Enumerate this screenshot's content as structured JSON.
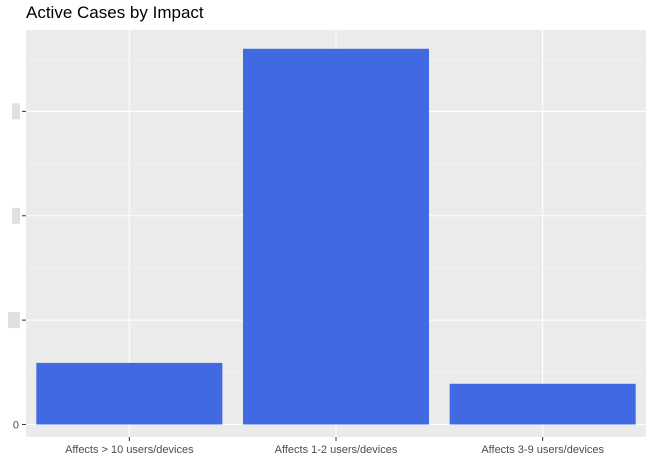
{
  "chart_data": {
    "type": "bar",
    "title": "Active Cases by Impact",
    "xlabel": "",
    "ylabel": "",
    "categories": [
      "Affects > 10 users/devices",
      "Affects 1-2 users/devices",
      "Affects 3-9 users/devices"
    ],
    "values": [
      59,
      360,
      39
    ],
    "ylim": [
      -12,
      378
    ],
    "y_ticks": [
      0,
      100,
      200,
      300
    ],
    "y_tick_labels": [
      "0",
      "",
      "",
      ""
    ],
    "grid": true,
    "legend": "none",
    "colors": {
      "bar": "#4169E1",
      "panel": "#EBEBEB",
      "grid_major": "#FFFFFF",
      "grid_minor": "#F5F5F5",
      "redacted_label": "#E0E0E0"
    }
  }
}
